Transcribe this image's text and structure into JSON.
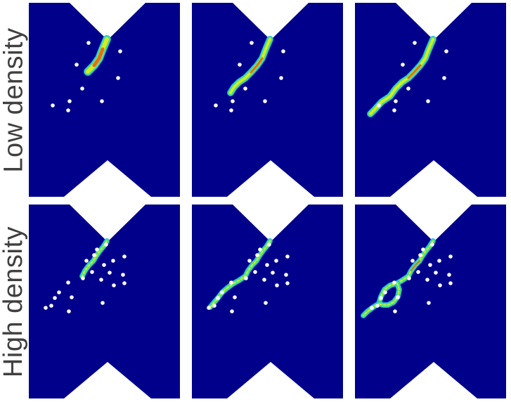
{
  "rows": [
    {
      "label": "Low density"
    },
    {
      "label": "High density"
    }
  ],
  "colors": {
    "background": "#00008b",
    "notch": "#ffffff",
    "inclusion": "#ffffff",
    "crack_outer": "#1fa8ff",
    "crack_mid": "#46e08a",
    "crack_core": "#d8ec1a",
    "crack_hot": "#e8561a"
  },
  "panels": [
    {
      "row": 0,
      "col": 0,
      "inclusions": [
        [
          85,
          57
        ],
        [
          130,
          69
        ],
        [
          68,
          88
        ],
        [
          127,
          107
        ],
        [
          76,
          122
        ],
        [
          58,
          140
        ],
        [
          104,
          140
        ],
        [
          34,
          146
        ],
        [
          56,
          153
        ]
      ],
      "cracks": [
        {
          "points": [
            [
              111,
              52
            ],
            [
              105,
              66
            ],
            [
              100,
              79
            ],
            [
              93,
              89
            ],
            [
              84,
              98
            ]
          ],
          "w": 9,
          "hot": true
        }
      ]
    },
    {
      "row": 0,
      "col": 1,
      "inclusions": [
        [
          85,
          57
        ],
        [
          130,
          69
        ],
        [
          68,
          88
        ],
        [
          127,
          107
        ],
        [
          76,
          122
        ],
        [
          58,
          140
        ],
        [
          104,
          140
        ],
        [
          34,
          146
        ],
        [
          56,
          153
        ]
      ],
      "cracks": [
        {
          "points": [
            [
              111,
              52
            ],
            [
              105,
              66
            ],
            [
              100,
              79
            ],
            [
              93,
              89
            ],
            [
              84,
              99
            ],
            [
              76,
              107
            ],
            [
              67,
              113
            ],
            [
              60,
              120
            ],
            [
              55,
              128
            ]
          ],
          "w": 7,
          "hot": true
        }
      ]
    },
    {
      "row": 0,
      "col": 2,
      "inclusions": [
        [
          85,
          57
        ],
        [
          130,
          69
        ],
        [
          68,
          88
        ],
        [
          127,
          107
        ],
        [
          76,
          122
        ],
        [
          58,
          140
        ],
        [
          104,
          140
        ],
        [
          34,
          146
        ],
        [
          56,
          153
        ]
      ],
      "cracks": [
        {
          "points": [
            [
              111,
              52
            ],
            [
              105,
              66
            ],
            [
              100,
              79
            ],
            [
              93,
              89
            ],
            [
              84,
              99
            ],
            [
              76,
              107
            ],
            [
              67,
              113
            ],
            [
              58,
              122
            ],
            [
              50,
              133
            ],
            [
              38,
              141
            ],
            [
              28,
              152
            ],
            [
              22,
              158
            ]
          ],
          "w": 7,
          "hot": true
        }
      ]
    },
    {
      "row": 1,
      "col": 0,
      "inclusions": [
        [
          110,
          57
        ],
        [
          97,
          64
        ],
        [
          93,
          72
        ],
        [
          136,
          74
        ],
        [
          82,
          80
        ],
        [
          120,
          80
        ],
        [
          107,
          86
        ],
        [
          90,
          96
        ],
        [
          115,
          97
        ],
        [
          134,
          100
        ],
        [
          77,
          105
        ],
        [
          103,
          107
        ],
        [
          136,
          112
        ],
        [
          56,
          111
        ],
        [
          121,
          115
        ],
        [
          43,
          125
        ],
        [
          37,
          133
        ],
        [
          61,
          132
        ],
        [
          105,
          140
        ],
        [
          32,
          144
        ],
        [
          24,
          147
        ],
        [
          57,
          152
        ]
      ],
      "cracks": [
        {
          "points": [
            [
              111,
              52
            ],
            [
              106,
              60
            ],
            [
              101,
              66
            ],
            [
              96,
              73
            ],
            [
              92,
              80
            ],
            [
              86,
              86
            ],
            [
              80,
              94
            ],
            [
              76,
              102
            ]
          ],
          "w": 5,
          "hot": false
        }
      ]
    },
    {
      "row": 1,
      "col": 1,
      "inclusions": [
        [
          110,
          57
        ],
        [
          97,
          64
        ],
        [
          93,
          72
        ],
        [
          136,
          74
        ],
        [
          82,
          80
        ],
        [
          120,
          80
        ],
        [
          107,
          86
        ],
        [
          90,
          96
        ],
        [
          115,
          97
        ],
        [
          134,
          100
        ],
        [
          77,
          105
        ],
        [
          103,
          107
        ],
        [
          136,
          112
        ],
        [
          56,
          111
        ],
        [
          121,
          115
        ],
        [
          43,
          125
        ],
        [
          37,
          133
        ],
        [
          61,
          132
        ],
        [
          105,
          140
        ],
        [
          32,
          144
        ],
        [
          24,
          147
        ],
        [
          57,
          152
        ]
      ],
      "cracks": [
        {
          "points": [
            [
              111,
              52
            ],
            [
              106,
              60
            ],
            [
              101,
              66
            ],
            [
              96,
              73
            ],
            [
              92,
              80
            ],
            [
              86,
              86
            ],
            [
              80,
              94
            ],
            [
              76,
              102
            ],
            [
              67,
              108
            ],
            [
              58,
              113
            ],
            [
              50,
              119
            ],
            [
              43,
              125
            ],
            [
              37,
              133
            ],
            [
              31,
              140
            ],
            [
              26,
              146
            ]
          ],
          "w": 5,
          "hot": false
        }
      ]
    },
    {
      "row": 1,
      "col": 2,
      "inclusions": [
        [
          110,
          57
        ],
        [
          97,
          64
        ],
        [
          93,
          72
        ],
        [
          136,
          74
        ],
        [
          82,
          80
        ],
        [
          120,
          80
        ],
        [
          107,
          86
        ],
        [
          90,
          96
        ],
        [
          115,
          97
        ],
        [
          134,
          100
        ],
        [
          77,
          105
        ],
        [
          103,
          107
        ],
        [
          136,
          112
        ],
        [
          56,
          111
        ],
        [
          121,
          115
        ],
        [
          43,
          125
        ],
        [
          37,
          133
        ],
        [
          61,
          132
        ],
        [
          105,
          140
        ],
        [
          32,
          144
        ],
        [
          24,
          147
        ],
        [
          57,
          152
        ]
      ],
      "cracks": [
        {
          "points": [
            [
              111,
              52
            ],
            [
              106,
              60
            ],
            [
              101,
              66
            ],
            [
              96,
              73
            ],
            [
              92,
              80
            ],
            [
              86,
              86
            ],
            [
              80,
              94
            ],
            [
              76,
              102
            ],
            [
              67,
              108
            ],
            [
              60,
              112
            ],
            [
              50,
              115
            ],
            [
              42,
              121
            ],
            [
              37,
              131
            ],
            [
              34,
              141
            ],
            [
              26,
              146
            ],
            [
              18,
              152
            ],
            [
              12,
              158
            ]
          ],
          "w": 5,
          "hot": true
        },
        {
          "points": [
            [
              60,
              112
            ],
            [
              63,
              121
            ],
            [
              61,
              131
            ],
            [
              55,
              139
            ],
            [
              47,
              143
            ],
            [
              40,
              143
            ],
            [
              34,
              141
            ]
          ],
          "w": 5,
          "hot": false
        }
      ]
    }
  ]
}
